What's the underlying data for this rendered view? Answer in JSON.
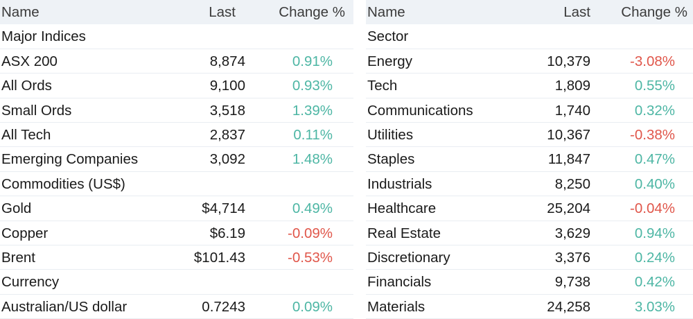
{
  "colors": {
    "positive": "#4db6a4",
    "negative": "#e0564a",
    "header_bg": "#eef2f6",
    "row_border": "#e9edf2"
  },
  "left": {
    "header": {
      "name": "Name",
      "last": "Last",
      "change": "Change %"
    },
    "sections": [
      {
        "title": "Major Indices",
        "rows": [
          {
            "name": "ASX 200",
            "last": "8,874",
            "change": "0.91%",
            "dir": "pos"
          },
          {
            "name": "All Ords",
            "last": "9,100",
            "change": "0.93%",
            "dir": "pos"
          },
          {
            "name": "Small Ords",
            "last": "3,518",
            "change": "1.39%",
            "dir": "pos"
          },
          {
            "name": "All Tech",
            "last": "2,837",
            "change": "0.11%",
            "dir": "pos"
          },
          {
            "name": "Emerging Companies",
            "last": "3,092",
            "change": "1.48%",
            "dir": "pos"
          }
        ]
      },
      {
        "title": "Commodities (US$)",
        "rows": [
          {
            "name": "Gold",
            "last": "$4,714",
            "change": "0.49%",
            "dir": "pos"
          },
          {
            "name": "Copper",
            "last": "$6.19",
            "change": "-0.09%",
            "dir": "neg"
          },
          {
            "name": "Brent",
            "last": "$101.43",
            "change": "-0.53%",
            "dir": "neg"
          }
        ]
      },
      {
        "title": "Currency",
        "rows": [
          {
            "name": "Australian/US dollar",
            "last": "0.7243",
            "change": "0.09%",
            "dir": "pos"
          }
        ]
      }
    ]
  },
  "right": {
    "header": {
      "name": "Name",
      "last": "Last",
      "change": "Change %"
    },
    "sections": [
      {
        "title": "Sector",
        "rows": [
          {
            "name": "Energy",
            "last": "10,379",
            "change": "-3.08%",
            "dir": "neg"
          },
          {
            "name": "Tech",
            "last": "1,809",
            "change": "0.55%",
            "dir": "pos"
          },
          {
            "name": "Communications",
            "last": "1,740",
            "change": "0.32%",
            "dir": "pos"
          },
          {
            "name": "Utilities",
            "last": "10,367",
            "change": "-0.38%",
            "dir": "neg"
          },
          {
            "name": "Staples",
            "last": "11,847",
            "change": "0.47%",
            "dir": "pos"
          },
          {
            "name": "Industrials",
            "last": "8,250",
            "change": "0.40%",
            "dir": "pos"
          },
          {
            "name": "Healthcare",
            "last": "25,204",
            "change": "-0.04%",
            "dir": "neg"
          },
          {
            "name": "Real Estate",
            "last": "3,629",
            "change": "0.94%",
            "dir": "pos"
          },
          {
            "name": "Discretionary",
            "last": "3,376",
            "change": "0.24%",
            "dir": "pos"
          },
          {
            "name": "Financials",
            "last": "9,738",
            "change": "0.42%",
            "dir": "pos"
          },
          {
            "name": "Materials",
            "last": "24,258",
            "change": "3.03%",
            "dir": "pos"
          }
        ]
      }
    ]
  }
}
